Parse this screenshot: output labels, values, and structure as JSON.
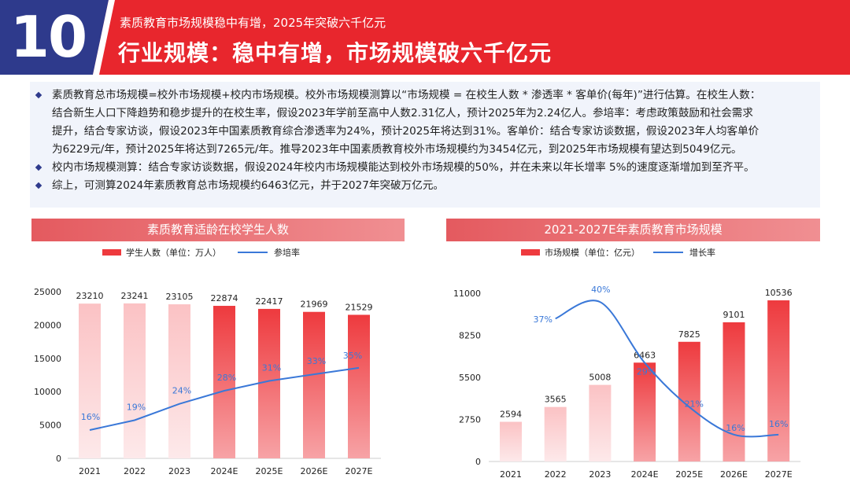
{
  "header": {
    "slide_number": "10",
    "subtitle": "素质教育市场规模稳中有增，2025年突破六千亿元",
    "title": "行业规模：稳中有增，市场规模破六千亿元"
  },
  "summary": {
    "bullets": [
      {
        "lines": [
          "素质教育总市场规模=校外市场规模+校内市场规模。校外市场规模测算以“市场规模 = 在校生人数 * 渗透率 * 客单价(每年)”进行估算。在校生人数：",
          "结合新生人口下降趋势和稳步提升的在校生率，假设2023年学前至高中人数2.31亿人，预计2025年为2.24亿人。参培率：考虑政策鼓励和社会需求",
          "提升，结合专家访谈，假设2023年中国素质教育综合渗透率为24%，预计2025年将达到31%。客单价：结合专家访谈数据，假设2023年人均客单价",
          "为6229元/年，预计2025年将达到7265元/年。推导2023年中国素质教育校外市场规模约为3454亿元，到2025年市场规模有望达到5049亿元。"
        ]
      },
      {
        "lines": [
          "校内市场规模测算：结合专家访谈数据，假设2024年校内市场规模能达到校外市场规模的50%，并在未来以年长增率 5%的速度逐渐增加到至齐平。"
        ]
      },
      {
        "lines": [
          "综上，可测算2024年素质教育总市场规模约6463亿元，并于2027年突破万亿元。"
        ]
      }
    ]
  },
  "colors": {
    "brand_red": "#e8262d",
    "navy": "#2e3a8c",
    "line_blue": "#3a78d8",
    "bar_light": "#fbc2c4",
    "bar_dark": "#ee3a3e"
  },
  "chart_data": [
    {
      "type": "bar",
      "title": "素质教育适龄在校学生人数",
      "categories": [
        "2021",
        "2022",
        "2023",
        "2024E",
        "2025E",
        "2026E",
        "2027E"
      ],
      "series": [
        {
          "name": "学生人数（单位：万人）",
          "type": "bar",
          "values": [
            23210,
            23241,
            23105,
            22874,
            22417,
            21969,
            21529
          ]
        },
        {
          "name": "参培率",
          "type": "line",
          "values": [
            16,
            19,
            24,
            28,
            31,
            33,
            35
          ],
          "labels": [
            "16%",
            "19%",
            "24%",
            "28%",
            "31%",
            "33%",
            "35%"
          ]
        }
      ],
      "bar_labels": [
        "23210",
        "23241",
        "23105",
        "22874",
        "22417",
        "21969",
        "21529"
      ],
      "y_ticks": [
        "25000",
        "20000",
        "15000",
        "10000",
        "5000",
        "0"
      ],
      "ylim": [
        0,
        25000
      ]
    },
    {
      "type": "bar",
      "title": "2021-2027E年素质教育市场规模",
      "categories": [
        "2021",
        "2022",
        "2023",
        "2024E",
        "2025E",
        "2026E",
        "2027E"
      ],
      "series": [
        {
          "name": "市场规模（单位：亿元）",
          "type": "bar",
          "values": [
            2594,
            3565,
            5008,
            6463,
            7825,
            9101,
            10536
          ]
        },
        {
          "name": "增长率",
          "type": "line",
          "x": [
            "2022",
            "2023",
            "2024E",
            "2025E",
            "2026E",
            "2027E"
          ],
          "values": [
            37,
            40,
            29,
            21,
            16,
            16
          ],
          "labels": [
            "37%",
            "40%",
            "29%",
            "21%",
            "16%",
            "16%"
          ]
        }
      ],
      "bar_labels": [
        "2594",
        "3565",
        "5008",
        "6463",
        "7825",
        "9101",
        "10536"
      ],
      "y_ticks": [
        "11000",
        "8250",
        "5500",
        "2750",
        "0"
      ],
      "ylim": [
        0,
        11000
      ]
    }
  ]
}
